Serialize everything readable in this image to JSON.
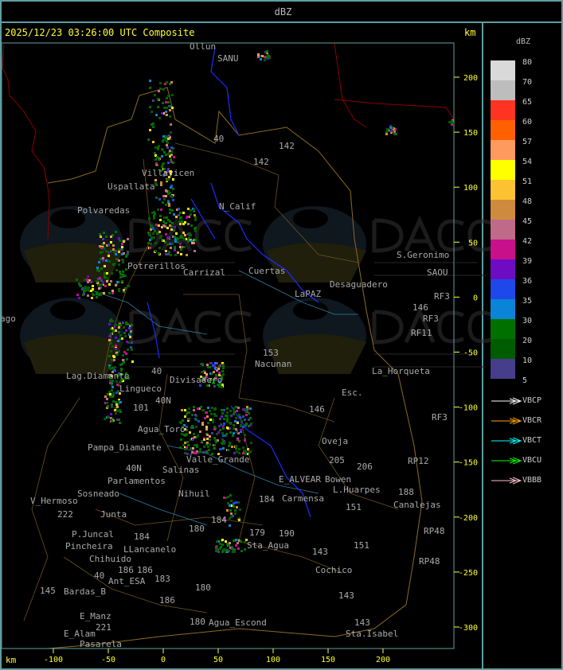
{
  "header": {
    "title": "dBZ"
  },
  "map": {
    "timestamp": "2025/12/23 03:26:00 UTC Composite",
    "unit_top": "km",
    "unit_bottom": "km",
    "y_ticks": [
      "200",
      "150",
      "100",
      "50",
      "0",
      "-50",
      "-100",
      "-150",
      "-200",
      "-250",
      "-300"
    ],
    "x_ticks": [
      "-100",
      "-50",
      "0",
      "50",
      "100",
      "150",
      "200"
    ],
    "places": [
      "Ollun",
      "SANU",
      "Uspallata",
      "Villavicen",
      "Polvaredas",
      "N_Calif",
      "40",
      "142",
      "142",
      "Carrizal",
      "Cuertas",
      "LaPAZ",
      "Desaguadero",
      "S.Geronimo",
      "SAOU",
      "RF3",
      "146",
      "RF3",
      "RF11",
      "153",
      "Nacunan",
      "La_Horqueta",
      "Esc.",
      "146",
      "Lag.Diamante",
      "Lingueco",
      "Divisadero",
      "Agua_Toro",
      "Pampa_Diamante",
      "Valle_Grande",
      "Oveja",
      "205",
      "206",
      "Salinas",
      "Parlamentos",
      "Sosneado",
      "Nihuil",
      "E_ALVEAR",
      "Bowen",
      "L.Huarpes",
      "151",
      "Canalejas",
      "188",
      "RP12",
      "RF3",
      "V_Hermoso",
      "222",
      "Junta",
      "Carmensa",
      "184",
      "180",
      "184",
      "P.Juncal",
      "Pincheira",
      "184",
      "LLancanelo",
      "179",
      "190",
      "Sta_Agua",
      "151",
      "143",
      "RP48",
      "RP48",
      "Chihuido",
      "186",
      "186",
      "183",
      "Ant_ESA",
      "40",
      "145",
      "Bardas_B",
      "180",
      "Cochico",
      "143",
      "186",
      "E_Manz",
      "Agua_Escond",
      "180",
      "143",
      "Sta.Isabel",
      "221",
      "E_Alam",
      "Pasarela",
      "ago",
      "40",
      "101",
      "40N",
      "40N",
      "Potrerillos"
    ],
    "watermark": {
      "logo": "DACC",
      "line1": "Dirección de Agricultura",
      "line2": "y Contingencias Climáticas",
      "url": "http://www.contingencias.mendoza.gov.ar"
    }
  },
  "legend": {
    "title": "dBZ",
    "scale": [
      {
        "label": "80",
        "color": "#d9d9d9"
      },
      {
        "label": "70",
        "color": "#bdbdbd"
      },
      {
        "label": "65",
        "color": "#ff3322"
      },
      {
        "label": "60",
        "color": "#ff6000"
      },
      {
        "label": "57",
        "color": "#ff9a5e"
      },
      {
        "label": "54",
        "color": "#ffff00"
      },
      {
        "label": "51",
        "color": "#fcc232"
      },
      {
        "label": "48",
        "color": "#cf8a3e"
      },
      {
        "label": "45",
        "color": "#c06a8a"
      },
      {
        "label": "42",
        "color": "#c8108a"
      },
      {
        "label": "39",
        "color": "#6e0cc4"
      },
      {
        "label": "36",
        "color": "#1f48ea"
      },
      {
        "label": "35",
        "color": "#0a84d8"
      },
      {
        "label": "30",
        "color": "#007000"
      },
      {
        "label": "20",
        "color": "#005c00"
      },
      {
        "label": "10",
        "color": "#463e8a"
      },
      {
        "label": "5",
        "color": ""
      }
    ],
    "vectors": [
      {
        "label": "VBCP",
        "color": "#ffffff"
      },
      {
        "label": "VBCR",
        "color": "#ffa500"
      },
      {
        "label": "VBCT",
        "color": "#00ffff"
      },
      {
        "label": "VBCU",
        "color": "#00ff00"
      },
      {
        "label": "VBBB",
        "color": "#ffc0cb"
      }
    ]
  }
}
